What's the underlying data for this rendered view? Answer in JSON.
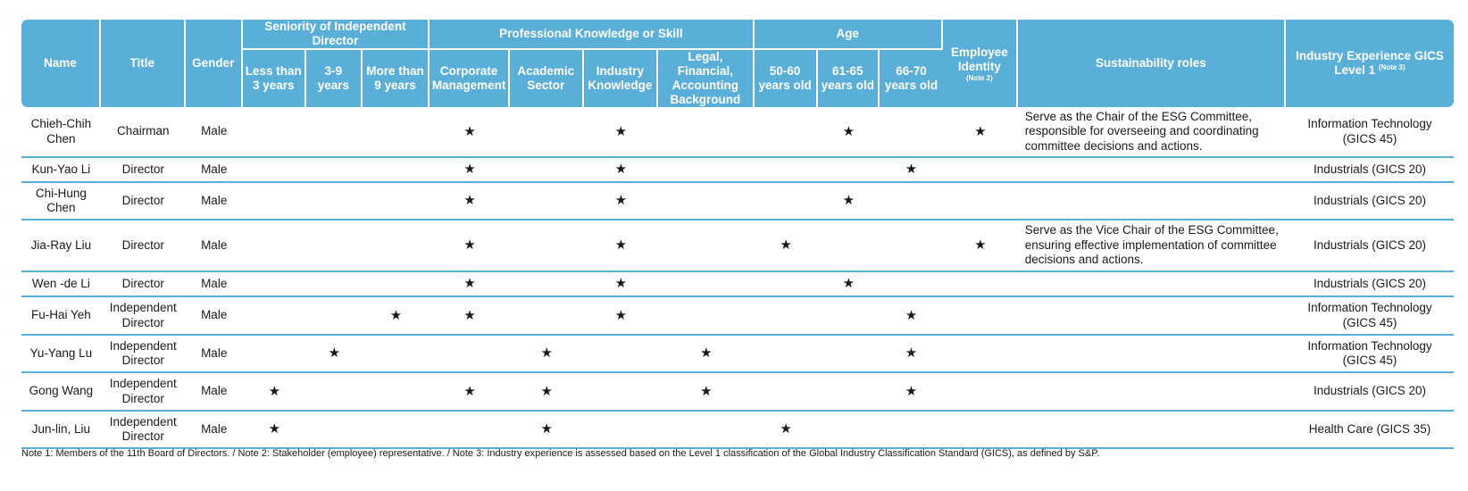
{
  "colors": {
    "header_bg": "#5aafd9",
    "header_text": "#ffffff",
    "row_rule": "#5aafd9"
  },
  "header": {
    "name": "Name",
    "title": "Title",
    "gender": "Gender",
    "group_seniority": "Seniority of Independent Director",
    "group_skill": "Professional Knowledge or Skill",
    "group_age": "Age",
    "employee_identity": "Employee Identity",
    "employee_note": "(Note 2)",
    "sustainability": "Sustainability roles",
    "industry": "Industry Experience GICS Level 1",
    "industry_note": "(Note 3)",
    "sen_lt3": "Less than 3 years",
    "sen_3_9": "3-9 years",
    "sen_gt9": "More than 9 years",
    "skill_corp": "Corporate Management",
    "skill_acad": "Academic Sector",
    "skill_ind": "Industry Knowledge",
    "skill_legal": "Legal, Financial, Accounting Background",
    "age_50_60": "50-60 years old",
    "age_61_65": "61-65 years old",
    "age_66_70": "66-70 years old"
  },
  "mark_symbol": "★",
  "rows": [
    {
      "name": "Chieh-Chih Chen",
      "title": "Chairman",
      "gender": "Male",
      "lt3": "",
      "s3_9": "",
      "gt9": "",
      "corp": "★",
      "acad": "",
      "ind": "★",
      "legal": "",
      "a50": "",
      "a61": "★",
      "a66": "",
      "emp": "★",
      "sus": "Serve as the Chair of the ESG Committee, responsible for overseeing and coordinating committee decisions and actions.",
      "industry": "Information Technology (GICS 45)"
    },
    {
      "name": "Kun-Yao Li",
      "title": "Director",
      "gender": "Male",
      "lt3": "",
      "s3_9": "",
      "gt9": "",
      "corp": "★",
      "acad": "",
      "ind": "★",
      "legal": "",
      "a50": "",
      "a61": "",
      "a66": "★",
      "emp": "",
      "sus": "",
      "industry": "Industrials (GICS 20)"
    },
    {
      "name": "Chi-Hung Chen",
      "title": "Director",
      "gender": "Male",
      "lt3": "",
      "s3_9": "",
      "gt9": "",
      "corp": "★",
      "acad": "",
      "ind": "★",
      "legal": "",
      "a50": "",
      "a61": "★",
      "a66": "",
      "emp": "",
      "sus": "",
      "industry": "Industrials (GICS 20)"
    },
    {
      "name": "Jia-Ray Liu",
      "title": "Director",
      "gender": "Male",
      "lt3": "",
      "s3_9": "",
      "gt9": "",
      "corp": "★",
      "acad": "",
      "ind": "★",
      "legal": "",
      "a50": "★",
      "a61": "",
      "a66": "",
      "emp": "★",
      "sus": "Serve as the Vice Chair of the ESG Committee, ensuring effective implementation of committee decisions and actions.",
      "industry": "Industrials (GICS 20)"
    },
    {
      "name": "Wen -de Li",
      "title": "Director",
      "gender": "Male",
      "lt3": "",
      "s3_9": "",
      "gt9": "",
      "corp": "★",
      "acad": "",
      "ind": "★",
      "legal": "",
      "a50": "",
      "a61": "★",
      "a66": "",
      "emp": "",
      "sus": "",
      "industry": "Industrials (GICS 20)"
    },
    {
      "name": "Fu-Hai Yeh",
      "title": "Independent Director",
      "gender": "Male",
      "lt3": "",
      "s3_9": "",
      "gt9": "★",
      "corp": "★",
      "acad": "",
      "ind": "★",
      "legal": "",
      "a50": "",
      "a61": "",
      "a66": "★",
      "emp": "",
      "sus": "",
      "industry": "Information Technology (GICS 45)"
    },
    {
      "name": "Yu-Yang Lu",
      "title": "Independent Director",
      "gender": "Male",
      "lt3": "",
      "s3_9": "★",
      "gt9": "",
      "corp": "",
      "acad": "★",
      "ind": "",
      "legal": "★",
      "a50": "",
      "a61": "",
      "a66": "★",
      "emp": "",
      "sus": "",
      "industry": "Information Technology (GICS 45)"
    },
    {
      "name": "Gong Wang",
      "title": "Independent Director",
      "gender": "Male",
      "lt3": "★",
      "s3_9": "",
      "gt9": "",
      "corp": "★",
      "acad": "★",
      "ind": "",
      "legal": "★",
      "a50": "",
      "a61": "",
      "a66": "★",
      "emp": "",
      "sus": "",
      "industry": "Industrials (GICS 20)"
    },
    {
      "name": "Jun-lin, Liu",
      "title": "Independent Director",
      "gender": "Male",
      "lt3": "★",
      "s3_9": "",
      "gt9": "",
      "corp": "",
      "acad": "★",
      "ind": "",
      "legal": "",
      "a50": "★",
      "a61": "",
      "a66": "",
      "emp": "",
      "sus": "",
      "industry": "Health Care (GICS 35)"
    }
  ],
  "footnote": "Note 1: Members of the 11th Board of Directors. / Note 2: Stakeholder (employee) representative. / Note 3: Industry experience is assessed based on the Level 1 classification of the Global Industry Classification Standard (GICS), as defined by S&P."
}
